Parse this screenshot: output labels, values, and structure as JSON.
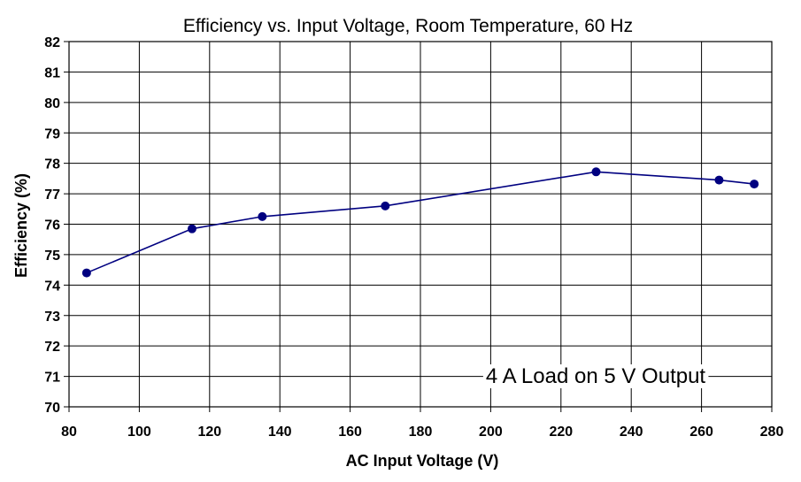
{
  "chart_data": {
    "type": "line",
    "title": "Efficiency vs. Input Voltage, Room Temperature, 60 Hz",
    "xlabel": "AC Input Voltage (V)",
    "ylabel": "Efficiency (%)",
    "xlim": [
      80,
      280
    ],
    "ylim": [
      70,
      82
    ],
    "x_ticks": [
      80,
      100,
      120,
      140,
      160,
      180,
      200,
      220,
      240,
      260,
      280
    ],
    "y_ticks": [
      70,
      71,
      72,
      73,
      74,
      75,
      76,
      77,
      78,
      79,
      80,
      81,
      82
    ],
    "grid": true,
    "annotation": "4 A Load on 5 V Output",
    "series": [
      {
        "color": "#000080",
        "x": [
          85,
          115,
          135,
          170,
          230,
          265,
          275
        ],
        "y": [
          74.4,
          75.85,
          76.25,
          76.6,
          77.72,
          77.45,
          77.32
        ]
      }
    ]
  }
}
